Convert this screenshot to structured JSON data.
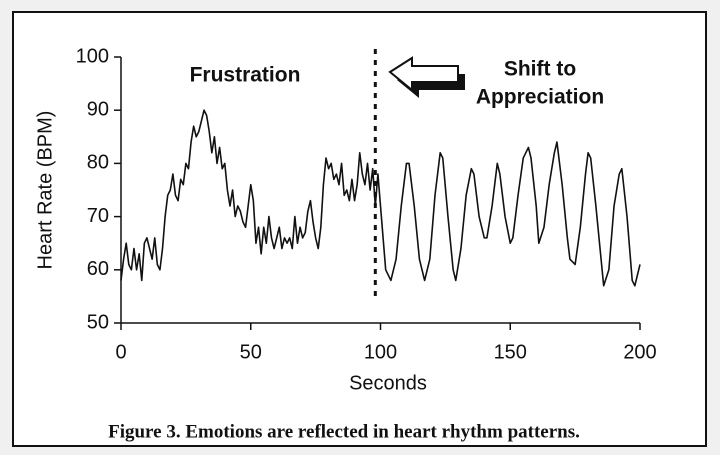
{
  "chart_data": {
    "type": "line",
    "x": [
      0,
      1,
      2,
      3,
      4,
      5,
      6,
      7,
      8,
      9,
      10,
      11,
      12,
      13,
      14,
      15,
      16,
      17,
      18,
      19,
      20,
      21,
      22,
      23,
      24,
      25,
      26,
      27,
      28,
      29,
      30,
      31,
      32,
      33,
      34,
      35,
      36,
      37,
      38,
      39,
      40,
      41,
      42,
      43,
      44,
      45,
      46,
      47,
      48,
      49,
      50,
      51,
      52,
      53,
      54,
      55,
      56,
      57,
      58,
      59,
      60,
      61,
      62,
      63,
      64,
      65,
      66,
      67,
      68,
      69,
      70,
      71,
      72,
      73,
      74,
      75,
      76,
      77,
      78,
      79,
      80,
      81,
      82,
      83,
      84,
      85,
      86,
      87,
      88,
      89,
      90,
      91,
      92,
      93,
      94,
      95,
      96,
      97,
      98,
      99,
      101,
      102,
      104,
      106,
      108,
      110,
      111,
      113,
      115,
      117,
      119,
      121,
      123,
      124,
      126,
      128,
      129,
      131,
      133,
      135,
      136,
      138,
      140,
      141,
      143,
      145,
      146,
      148,
      150,
      151,
      153,
      155,
      157,
      158,
      160,
      161,
      163,
      165,
      167,
      168,
      170,
      172,
      173,
      175,
      177,
      179,
      180,
      181,
      183,
      185,
      186,
      188,
      190,
      192,
      193,
      195,
      197,
      198,
      200
    ],
    "series": [
      {
        "name": "Heart Rate",
        "color": "#111111",
        "values": [
          58,
          62,
          65,
          61,
          60,
          64,
          60,
          63,
          58,
          65,
          66,
          64,
          62,
          66,
          61,
          60,
          64,
          70,
          74,
          75,
          78,
          74,
          73,
          77,
          76,
          80,
          79,
          84,
          87,
          85,
          86,
          88,
          90,
          89,
          86,
          82,
          85,
          80,
          83,
          79,
          80,
          75,
          72,
          75,
          70,
          72,
          71,
          69,
          68,
          72,
          76,
          73,
          65,
          68,
          63,
          68,
          65,
          70,
          66,
          64,
          66,
          68,
          64,
          66,
          65,
          66,
          64,
          70,
          65,
          68,
          66,
          67,
          71,
          73,
          69,
          66,
          64,
          68,
          76,
          81,
          79,
          80,
          77,
          78,
          76,
          80,
          74,
          75,
          73,
          77,
          73,
          76,
          82,
          78,
          76,
          80,
          75,
          79,
          72,
          78,
          66,
          60,
          58,
          62,
          72,
          80,
          80,
          72,
          62,
          58,
          62,
          74,
          82,
          81,
          70,
          60,
          58,
          64,
          74,
          79,
          78,
          70,
          66,
          66,
          72,
          80,
          78,
          70,
          65,
          66,
          74,
          81,
          83,
          81,
          72,
          65,
          68,
          76,
          82,
          84,
          76,
          66,
          62,
          61,
          68,
          78,
          82,
          81,
          72,
          62,
          57,
          60,
          72,
          78,
          79,
          70,
          58,
          57,
          61
        ]
      }
    ],
    "xlabel": "Seconds",
    "ylabel": "Heart Rate (BPM)",
    "xlim": [
      0,
      200
    ],
    "ylim": [
      50,
      100
    ],
    "xticks": [
      0,
      50,
      100,
      150,
      200
    ],
    "yticks": [
      50,
      60,
      70,
      80,
      90,
      100
    ],
    "marker_x": 98,
    "annotations": [
      "Frustration",
      "Shift to",
      "Appreciation"
    ],
    "caption": "Figure 3. Emotions are reflected in heart rhythm patterns."
  }
}
